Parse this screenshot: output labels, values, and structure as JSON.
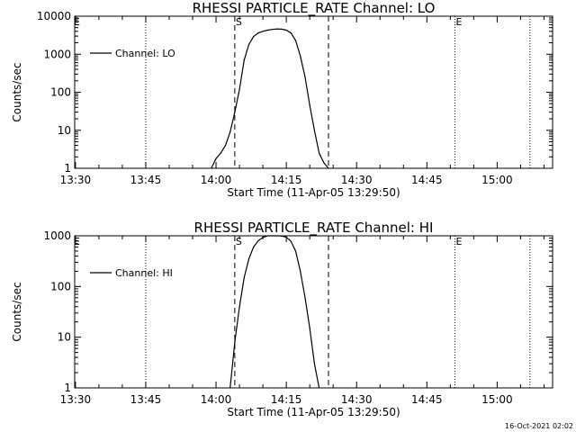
{
  "chart_data": [
    {
      "type": "line",
      "title": "RHESSI PARTICLE_RATE Channel: LO",
      "xlabel": "Start Time (11-Apr-05 13:29:50)",
      "ylabel": "Counts/sec",
      "y_scale": "log",
      "ylim": [
        1,
        10000
      ],
      "yticks": [
        "1",
        "10",
        "100",
        "1000",
        "10000"
      ],
      "xticks": [
        "13:30",
        "13:45",
        "14:00",
        "14:15",
        "14:30",
        "14:45",
        "15:00"
      ],
      "legend": {
        "label": "Channel: LO",
        "position": "top-left"
      },
      "markers": {
        "start": "S",
        "end": "E"
      },
      "dotted_lines": [
        "13:45",
        "14:51",
        "15:07"
      ],
      "dashed_lines": [
        "14:04",
        "14:24"
      ],
      "series": [
        {
          "name": "Channel: LO",
          "x": [
            "13:59",
            "14:00",
            "14:01",
            "14:02",
            "14:03",
            "14:04",
            "14:05",
            "14:06",
            "14:07",
            "14:08",
            "14:09",
            "14:10",
            "14:11",
            "14:12",
            "14:13",
            "14:14",
            "14:15",
            "14:16",
            "14:17",
            "14:18",
            "14:19",
            "14:20",
            "14:21",
            "14:22",
            "14:23",
            "14:24"
          ],
          "values": [
            1,
            1.8,
            2.5,
            4,
            9,
            30,
            120,
            700,
            1800,
            2900,
            3600,
            4000,
            4300,
            4500,
            4600,
            4550,
            4300,
            3600,
            2300,
            900,
            250,
            45,
            10,
            2.5,
            1.4,
            1
          ]
        }
      ]
    },
    {
      "type": "line",
      "title": "RHESSI PARTICLE_RATE Channel: HI",
      "xlabel": "Start Time (11-Apr-05 13:29:50)",
      "ylabel": "Counts/sec",
      "y_scale": "log",
      "ylim": [
        1,
        1000
      ],
      "yticks": [
        "1",
        "10",
        "100",
        "1000"
      ],
      "xticks": [
        "13:30",
        "13:45",
        "14:00",
        "14:15",
        "14:30",
        "14:45",
        "15:00"
      ],
      "legend": {
        "label": "Channel: HI",
        "position": "top-left"
      },
      "markers": {
        "start": "S",
        "end": "E"
      },
      "dotted_lines": [
        "13:45",
        "14:51",
        "15:07"
      ],
      "dashed_lines": [
        "14:04",
        "14:24"
      ],
      "series": [
        {
          "name": "Channel: HI",
          "x": [
            "14:03",
            "14:04",
            "14:05",
            "14:06",
            "14:07",
            "14:08",
            "14:09",
            "14:10",
            "14:11",
            "14:12",
            "14:13",
            "14:14",
            "14:15",
            "14:16",
            "14:17",
            "14:18",
            "14:19",
            "14:20",
            "14:21",
            "14:22"
          ],
          "values": [
            1,
            8,
            40,
            150,
            350,
            600,
            800,
            930,
            1000,
            1000,
            1000,
            990,
            940,
            780,
            500,
            200,
            60,
            15,
            3,
            1
          ]
        }
      ]
    }
  ],
  "footer": {
    "timestamp": "16-Oct-2021 02:02"
  }
}
